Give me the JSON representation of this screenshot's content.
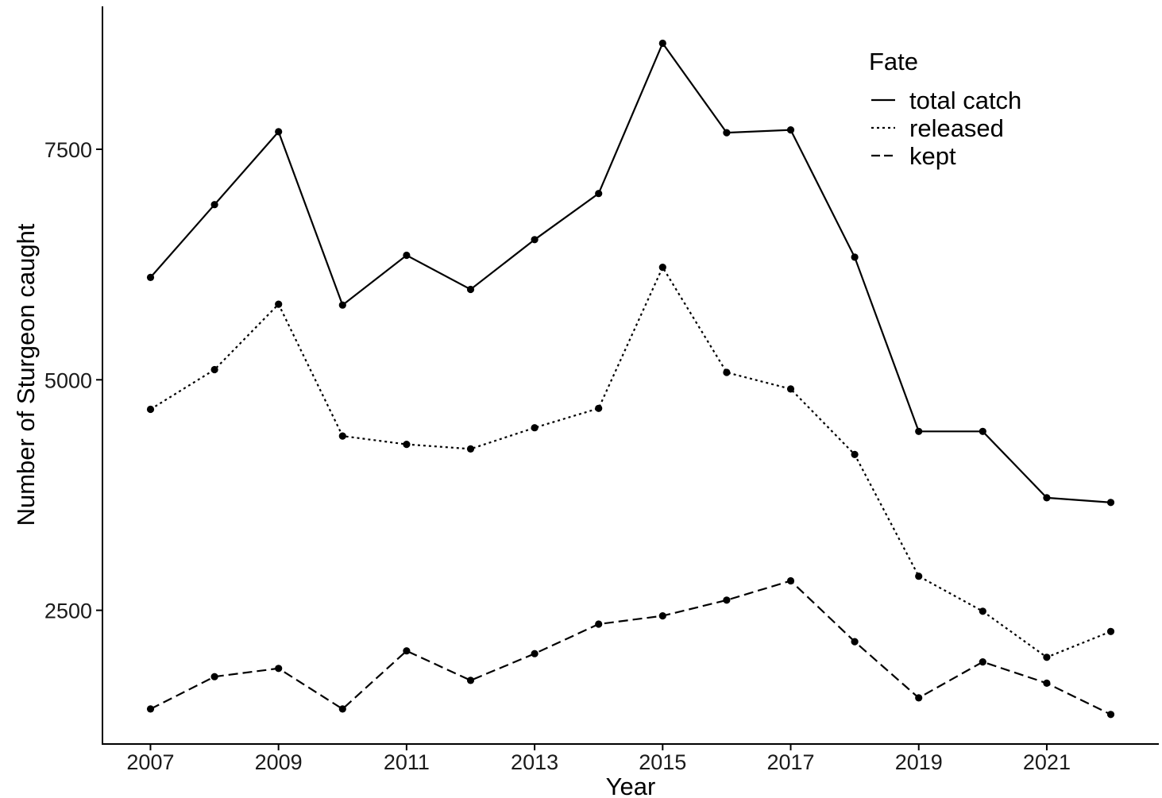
{
  "chart_data": {
    "type": "line",
    "title": "",
    "xlabel": "Year",
    "ylabel": "Number of Sturgeon caught",
    "x": [
      2007,
      2008,
      2009,
      2010,
      2011,
      2012,
      2013,
      2014,
      2015,
      2016,
      2017,
      2018,
      2019,
      2020,
      2021,
      2022
    ],
    "x_ticks": [
      2007,
      2009,
      2011,
      2013,
      2015,
      2017,
      2019,
      2021
    ],
    "y_ticks": [
      2500,
      5000,
      7500
    ],
    "xlim": [
      2006.25,
      2022.75
    ],
    "ylim": [
      1050,
      9050
    ],
    "grid": false,
    "legend": {
      "title": "Fate",
      "placement": "top-right"
    },
    "series": [
      {
        "name": "total catch",
        "linetype": "solid",
        "values": [
          6110,
          6900,
          7690,
          5810,
          6350,
          5980,
          6520,
          7020,
          8650,
          7680,
          7710,
          6330,
          4440,
          4440,
          3720,
          3670
        ]
      },
      {
        "name": "released",
        "linetype": "dotted",
        "values": [
          4680,
          5110,
          5820,
          4390,
          4300,
          4250,
          4480,
          4690,
          6220,
          5080,
          4900,
          4190,
          2870,
          2490,
          1990,
          2270
        ]
      },
      {
        "name": "kept",
        "linetype": "dashed",
        "values": [
          1430,
          1780,
          1870,
          1430,
          2060,
          1740,
          2030,
          2350,
          2440,
          2610,
          2820,
          2160,
          1550,
          1940,
          1710,
          1370
        ]
      }
    ],
    "colors": {
      "line": "#000000",
      "point": "#000000",
      "background": "#ffffff"
    }
  }
}
